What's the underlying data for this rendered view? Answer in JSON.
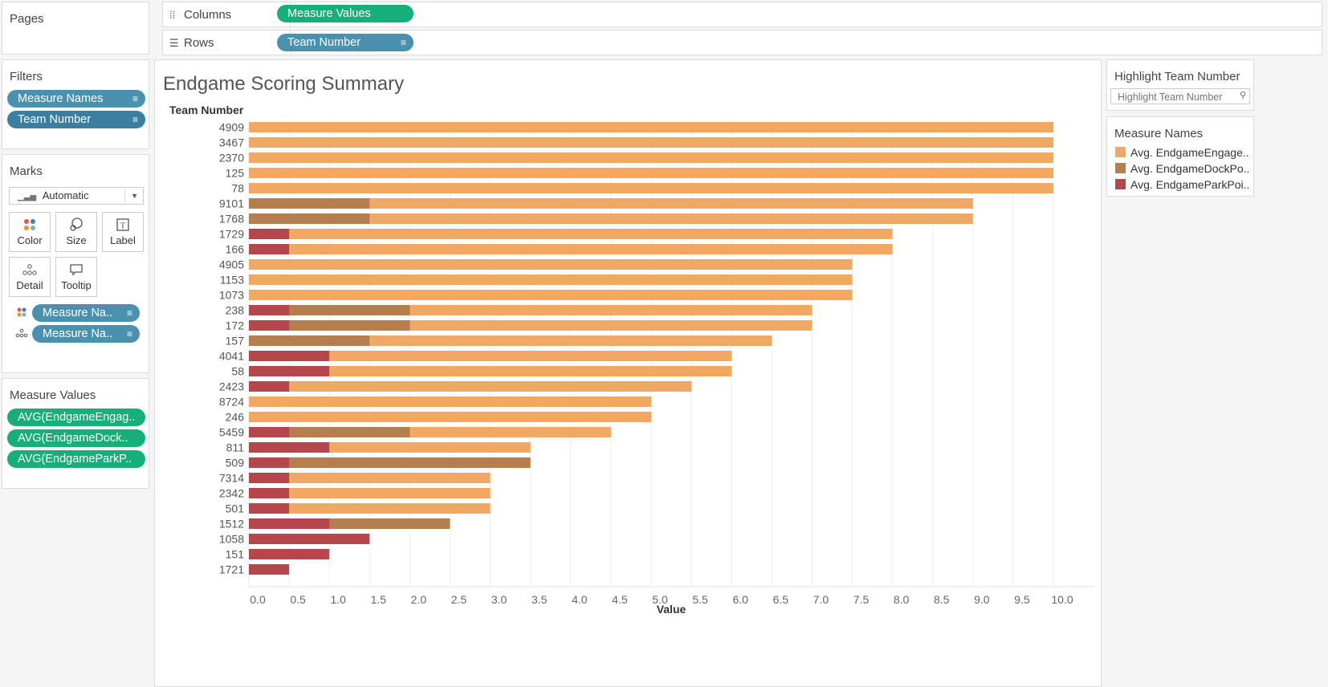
{
  "shelves": {
    "columns_label": "Columns",
    "columns_pill": "Measure Values",
    "rows_label": "Rows",
    "rows_pill": "Team Number"
  },
  "pages_card": {
    "title": "Pages"
  },
  "filters_card": {
    "title": "Filters",
    "pills": [
      "Measure Names",
      "Team Number"
    ]
  },
  "marks_card": {
    "title": "Marks",
    "type": "Automatic",
    "buttons": [
      "Color",
      "Size",
      "Label",
      "Detail",
      "Tooltip"
    ],
    "pills": [
      "Measure Na..",
      "Measure Na.."
    ]
  },
  "measure_values_card": {
    "title": "Measure Values",
    "pills": [
      "AVG(EndgameEngag..",
      "AVG(EndgameDock..",
      "AVG(EndgameParkP.."
    ]
  },
  "highlight": {
    "title": "Highlight Team Number",
    "placeholder": "Highlight Team Number"
  },
  "legend": {
    "title": "Measure Names",
    "items": [
      {
        "label": "Avg. EndgameEngage..",
        "color": "#f0a862"
      },
      {
        "label": "Avg. EndgameDockPo..",
        "color": "#b67e4c"
      },
      {
        "label": "Avg. EndgameParkPoi..",
        "color": "#b5474c"
      }
    ]
  },
  "chart_data": {
    "type": "bar",
    "orientation": "horizontal",
    "stacking": "overlapping",
    "title": "Endgame Scoring Summary",
    "ylabel": "Team Number",
    "xlabel": "Value",
    "xlim": [
      0,
      10.5
    ],
    "xticks": [
      "0.0",
      "0.5",
      "1.0",
      "1.5",
      "2.0",
      "2.5",
      "3.0",
      "3.5",
      "4.0",
      "4.5",
      "5.0",
      "5.5",
      "6.0",
      "6.5",
      "7.0",
      "7.5",
      "8.0",
      "8.5",
      "9.0",
      "9.5",
      "10.0"
    ],
    "grid": true,
    "categories": [
      "4909",
      "3467",
      "2370",
      "125",
      "78",
      "9101",
      "1768",
      "1729",
      "166",
      "4905",
      "1153",
      "1073",
      "238",
      "172",
      "157",
      "4041",
      "58",
      "2423",
      "8724",
      "246",
      "5459",
      "811",
      "509",
      "7314",
      "2342",
      "501",
      "1512",
      "1058",
      "151",
      "1721"
    ],
    "series": [
      {
        "name": "Avg. EndgameEngage..",
        "color": "#f0a862",
        "values": [
          10,
          10,
          10,
          10,
          10,
          9,
          9,
          8,
          8,
          7.5,
          7.5,
          7.5,
          7,
          7,
          6.5,
          6,
          6,
          5.5,
          5,
          5,
          4.5,
          3.5,
          0,
          3,
          3,
          3,
          2.5,
          0,
          0,
          0
        ]
      },
      {
        "name": "Avg. EndgameDockPo..",
        "color": "#b67e4c",
        "values": [
          0,
          0,
          0,
          0,
          0,
          1.5,
          1.5,
          0,
          0,
          0,
          0,
          0,
          2,
          2,
          1.5,
          0,
          0,
          0,
          0,
          0,
          2,
          0,
          3.5,
          0,
          0,
          0,
          2.5,
          0,
          0,
          0
        ]
      },
      {
        "name": "Avg. EndgameParkPoi..",
        "color": "#b5474c",
        "values": [
          0,
          0,
          0,
          0,
          0,
          0,
          0,
          0.5,
          0.5,
          0,
          0,
          0,
          0.5,
          0.5,
          0,
          1,
          1,
          0.5,
          0,
          0,
          0.5,
          1,
          0.5,
          0.5,
          0.5,
          0.5,
          1,
          1.5,
          1,
          0.5
        ]
      }
    ]
  }
}
